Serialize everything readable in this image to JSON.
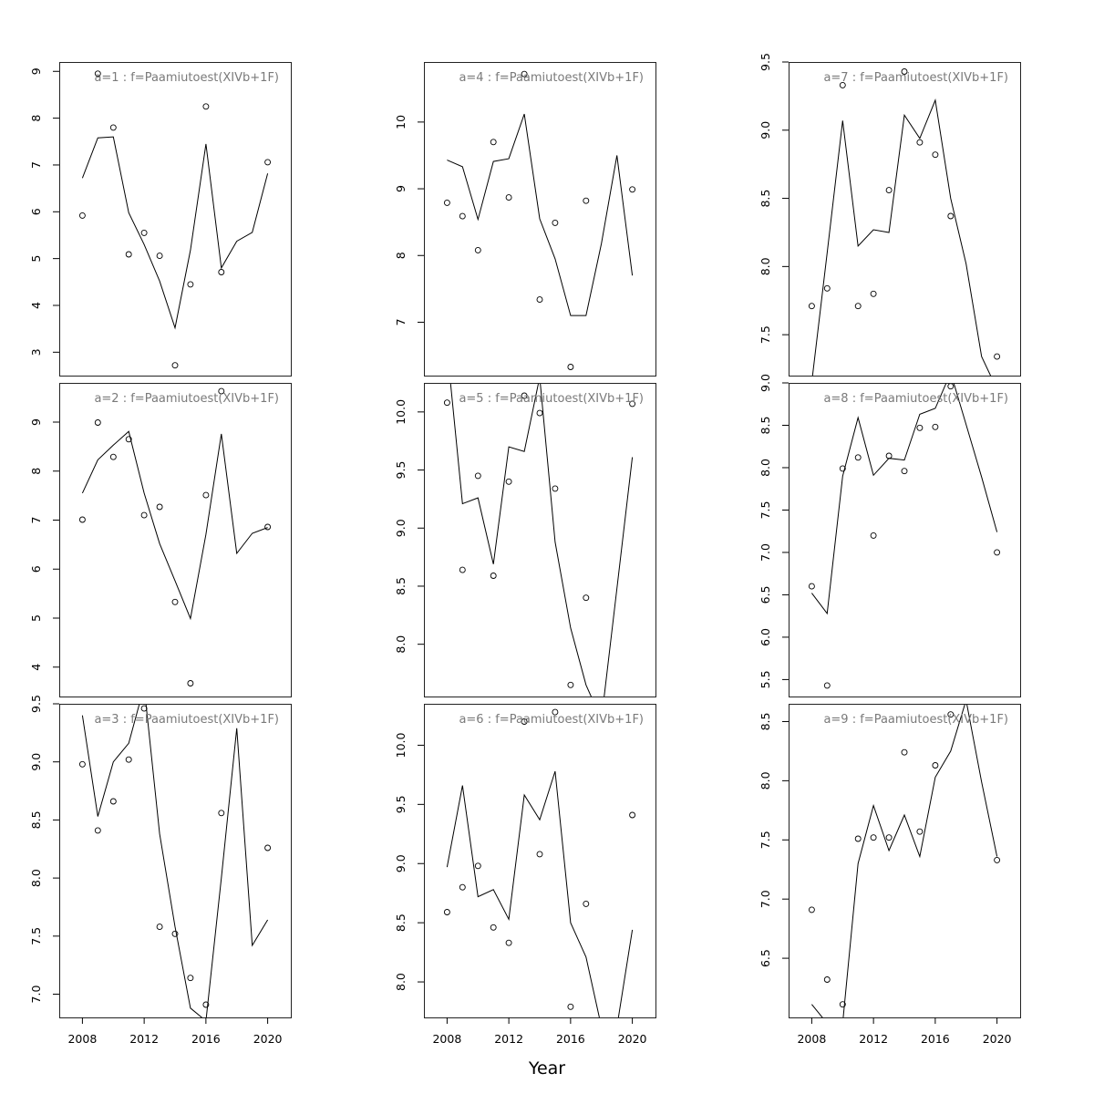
{
  "figure": {
    "xlabel": "Year"
  },
  "chart_data": [
    {
      "type": "scatter+line",
      "title": "a=1 : f=Paamiutoest(XIVb+1F)",
      "xlim": [
        2006.5,
        2021.5
      ],
      "ylim": [
        2.5,
        9.2
      ],
      "yticks": [
        3,
        4,
        5,
        6,
        7,
        8,
        9
      ],
      "observed": {
        "x": [
          2008,
          2009,
          2010,
          2011,
          2012,
          2013,
          2014,
          2015,
          2016,
          2017,
          2020
        ],
        "y": [
          5.92,
          8.95,
          7.8,
          5.09,
          5.55,
          5.06,
          2.72,
          4.45,
          8.25,
          4.71,
          7.06
        ]
      },
      "fitted": {
        "x": [
          2008,
          2009,
          2010,
          2011,
          2012,
          2013,
          2014,
          2015,
          2016,
          2017,
          2018,
          2019,
          2020
        ],
        "y": [
          6.72,
          7.58,
          7.6,
          5.98,
          5.3,
          4.52,
          3.52,
          5.18,
          7.45,
          4.8,
          5.37,
          5.56,
          6.82
        ]
      }
    },
    {
      "type": "scatter+line",
      "title": "a=2 : f=Paamiutoest(XIVb+1F)",
      "xlim": [
        2006.5,
        2021.5
      ],
      "ylim": [
        3.4,
        9.8
      ],
      "yticks": [
        4,
        5,
        6,
        7,
        8,
        9
      ],
      "observed": {
        "x": [
          2008,
          2009,
          2010,
          2011,
          2012,
          2013,
          2014,
          2015,
          2016,
          2017,
          2020
        ],
        "y": [
          7.01,
          8.99,
          8.29,
          8.65,
          7.1,
          7.27,
          5.33,
          3.67,
          7.51,
          9.63,
          6.86
        ]
      },
      "fitted": {
        "x": [
          2008,
          2009,
          2010,
          2011,
          2012,
          2013,
          2014,
          2015,
          2016,
          2017,
          2018,
          2019,
          2020
        ],
        "y": [
          7.55,
          8.23,
          8.53,
          8.81,
          7.55,
          6.52,
          5.76,
          4.99,
          6.71,
          8.76,
          6.32,
          6.73,
          6.85
        ]
      }
    },
    {
      "type": "scatter+line",
      "title": "a=3 : f=Paamiutoest(XIVb+1F)",
      "xlim": [
        2006.5,
        2021.5
      ],
      "ylim": [
        6.8,
        9.5
      ],
      "yticks": [
        7.0,
        7.5,
        8.0,
        8.5,
        9.0,
        9.5
      ],
      "observed": {
        "x": [
          2008,
          2009,
          2010,
          2011,
          2012,
          2013,
          2014,
          2015,
          2016,
          2017,
          2020
        ],
        "y": [
          8.98,
          8.41,
          8.66,
          9.02,
          9.46,
          7.58,
          7.52,
          7.14,
          6.91,
          8.56,
          8.26
        ]
      },
      "fitted": {
        "x": [
          2008,
          2009,
          2010,
          2011,
          2012,
          2013,
          2014,
          2015,
          2016,
          2017,
          2018,
          2019,
          2020
        ],
        "y": [
          9.4,
          8.53,
          9.0,
          9.16,
          9.65,
          8.38,
          7.58,
          6.88,
          6.77,
          8.0,
          9.29,
          7.42,
          7.64
        ]
      }
    },
    {
      "type": "scatter+line",
      "title": "a=4 : f=Paamiutoest(XIVb+1F)",
      "xlim": [
        2006.5,
        2021.5
      ],
      "ylim": [
        6.2,
        10.9
      ],
      "yticks": [
        7,
        8,
        9,
        10
      ],
      "observed": {
        "x": [
          2008,
          2009,
          2010,
          2011,
          2012,
          2013,
          2014,
          2015,
          2016,
          2017,
          2020
        ],
        "y": [
          8.79,
          8.59,
          8.08,
          9.7,
          8.87,
          10.72,
          7.34,
          8.49,
          6.33,
          8.82,
          8.99
        ]
      },
      "fitted": {
        "x": [
          2008,
          2009,
          2010,
          2011,
          2012,
          2013,
          2014,
          2015,
          2016,
          2017,
          2018,
          2019,
          2020
        ],
        "y": [
          9.43,
          9.33,
          8.54,
          9.41,
          9.45,
          10.12,
          8.55,
          7.95,
          7.1,
          7.1,
          8.18,
          9.5,
          7.7
        ]
      }
    },
    {
      "type": "scatter+line",
      "title": "a=5 : f=Paamiutoest(XIVb+1F)",
      "xlim": [
        2006.5,
        2021.5
      ],
      "ylim": [
        7.55,
        10.25
      ],
      "yticks": [
        8.0,
        8.5,
        9.0,
        9.5,
        10.0
      ],
      "observed": {
        "x": [
          2008,
          2009,
          2010,
          2011,
          2012,
          2013,
          2014,
          2015,
          2016,
          2017,
          2020
        ],
        "y": [
          10.08,
          8.64,
          9.45,
          8.59,
          9.4,
          10.14,
          9.99,
          9.34,
          7.65,
          8.4,
          10.07
        ]
      },
      "fitted": {
        "x": [
          2008,
          2009,
          2010,
          2011,
          2012,
          2013,
          2014,
          2015,
          2016,
          2017,
          2018,
          2019,
          2020
        ],
        "y": [
          10.55,
          9.21,
          9.26,
          8.69,
          9.7,
          9.66,
          10.3,
          8.88,
          8.14,
          7.65,
          7.35,
          8.48,
          9.61
        ]
      }
    },
    {
      "type": "scatter+line",
      "title": "a=6 : f=Paamiutoest(XIVb+1F)",
      "xlim": [
        2006.5,
        2021.5
      ],
      "ylim": [
        7.7,
        10.35
      ],
      "yticks": [
        8.0,
        8.5,
        9.0,
        9.5,
        10.0
      ],
      "observed": {
        "x": [
          2008,
          2009,
          2010,
          2011,
          2012,
          2013,
          2014,
          2015,
          2016,
          2017,
          2020
        ],
        "y": [
          8.59,
          8.8,
          8.98,
          8.46,
          8.33,
          10.2,
          9.08,
          10.28,
          7.79,
          8.66,
          9.41
        ]
      },
      "fitted": {
        "x": [
          2008,
          2009,
          2010,
          2011,
          2012,
          2013,
          2014,
          2015,
          2016,
          2017,
          2018,
          2019,
          2020
        ],
        "y": [
          8.97,
          9.66,
          8.72,
          8.78,
          8.53,
          9.58,
          9.37,
          9.78,
          8.5,
          8.21,
          7.62,
          7.62,
          8.44
        ]
      }
    },
    {
      "type": "scatter+line",
      "title": "a=7 : f=Paamiutoest(XIVb+1F)",
      "xlim": [
        2006.5,
        2021.5
      ],
      "ylim": [
        7.2,
        9.5
      ],
      "yticks": [
        7.5,
        8.0,
        8.5,
        9.0,
        9.5
      ],
      "observed": {
        "x": [
          2008,
          2009,
          2010,
          2011,
          2012,
          2013,
          2014,
          2015,
          2016,
          2017,
          2020
        ],
        "y": [
          7.71,
          7.84,
          9.33,
          7.71,
          7.8,
          8.56,
          9.43,
          8.91,
          8.82,
          8.37,
          7.34
        ]
      },
      "fitted": {
        "x": [
          2008,
          2009,
          2010,
          2011,
          2012,
          2013,
          2014,
          2015,
          2016,
          2017,
          2018,
          2019,
          2020
        ],
        "y": [
          7.15,
          8.1,
          9.07,
          8.15,
          8.27,
          8.25,
          9.11,
          8.94,
          9.22,
          8.5,
          8.02,
          7.34,
          7.1
        ]
      }
    },
    {
      "type": "scatter+line",
      "title": "a=8 : f=Paamiutoest(XIVb+1F)",
      "xlim": [
        2006.5,
        2021.5
      ],
      "ylim": [
        5.3,
        9.0
      ],
      "yticks": [
        5.5,
        6.0,
        6.5,
        7.0,
        7.5,
        8.0,
        8.5,
        9.0
      ],
      "observed": {
        "x": [
          2008,
          2009,
          2010,
          2011,
          2012,
          2013,
          2014,
          2015,
          2016,
          2017,
          2020
        ],
        "y": [
          6.6,
          5.43,
          7.99,
          8.12,
          7.2,
          8.14,
          7.96,
          8.47,
          8.48,
          8.96,
          7.0
        ]
      },
      "fitted": {
        "x": [
          2008,
          2009,
          2010,
          2011,
          2012,
          2013,
          2014,
          2015,
          2016,
          2017,
          2018,
          2019,
          2020
        ],
        "y": [
          6.52,
          6.28,
          7.9,
          8.59,
          7.91,
          8.11,
          8.09,
          8.63,
          8.7,
          9.12,
          8.51,
          7.89,
          7.24
        ]
      }
    },
    {
      "type": "scatter+line",
      "title": "a=9 : f=Paamiutoest(XIVb+1F)",
      "xlim": [
        2006.5,
        2021.5
      ],
      "ylim": [
        6.0,
        8.65
      ],
      "yticks": [
        6.5,
        7.0,
        7.5,
        8.0,
        8.5
      ],
      "observed": {
        "x": [
          2008,
          2009,
          2010,
          2011,
          2012,
          2013,
          2014,
          2015,
          2016,
          2017,
          2020
        ],
        "y": [
          6.91,
          6.32,
          6.11,
          7.51,
          7.52,
          7.52,
          8.24,
          7.57,
          8.13,
          8.56,
          7.33
        ]
      },
      "fitted": {
        "x": [
          2008,
          2009,
          2010,
          2011,
          2012,
          2013,
          2014,
          2015,
          2016,
          2017,
          2018,
          2019,
          2020
        ],
        "y": [
          6.11,
          5.95,
          5.95,
          7.3,
          7.79,
          7.41,
          7.71,
          7.36,
          8.03,
          8.25,
          8.68,
          7.99,
          7.36
        ]
      }
    }
  ]
}
